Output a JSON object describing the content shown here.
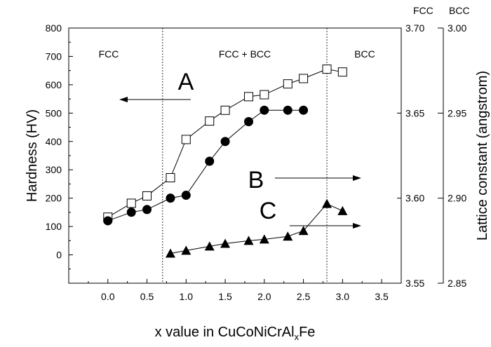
{
  "chart_data": {
    "type": "scatter",
    "xlabel": "x value in CuCoNiCrAl",
    "xlabel_subscript": "x",
    "xlabel_suffix": "Fe",
    "ylabel_left": "Hardness (HV)",
    "ylabel_right": "Lattice constant (angstrom)",
    "xlim": [
      -0.5,
      3.75
    ],
    "x_ticks": [
      "0.0",
      "0.5",
      "1.0",
      "1.5",
      "2.0",
      "2.5",
      "3.0",
      "3.5"
    ],
    "ylim_left": [
      -100,
      800
    ],
    "y_ticks_left": [
      "0",
      "100",
      "200",
      "300",
      "400",
      "500",
      "600",
      "700",
      "800"
    ],
    "right_axis_headers": [
      "FCC",
      "BCC"
    ],
    "y_ticks_right_fcc": [
      "3.55",
      "3.60",
      "3.65",
      "3.70"
    ],
    "y_ticks_right_bcc": [
      "2.85",
      "2.90",
      "2.95",
      "3.00"
    ],
    "ylim_right_fcc": [
      3.55,
      3.7
    ],
    "ylim_right_bcc": [
      2.85,
      3.0
    ],
    "phase_boundaries": [
      0.7,
      2.8
    ],
    "region_labels": [
      "FCC",
      "FCC + BCC",
      "BCC"
    ],
    "series": [
      {
        "name": "A",
        "marker": "open-square",
        "axis": "left",
        "x": [
          0.0,
          0.3,
          0.5,
          0.8,
          1.0,
          1.3,
          1.5,
          1.8,
          2.0,
          2.3,
          2.5,
          2.8,
          3.0
        ],
        "y": [
          133,
          182,
          208,
          272,
          407,
          472,
          510,
          558,
          565,
          603,
          622,
          655,
          645
        ]
      },
      {
        "name": "B",
        "marker": "filled-circle",
        "axis": "right-fcc",
        "x": [
          0.0,
          0.3,
          0.5,
          0.8,
          1.0,
          1.3,
          1.5,
          1.8,
          2.0,
          2.3,
          2.5
        ],
        "y": [
          3.5867,
          3.5917,
          3.5933,
          3.6,
          3.6017,
          3.6217,
          3.6333,
          3.645,
          3.6517,
          3.6517,
          3.6517
        ]
      },
      {
        "name": "C",
        "marker": "filled-triangle",
        "axis": "right-bcc",
        "x": [
          0.8,
          1.0,
          1.3,
          1.5,
          1.8,
          2.0,
          2.3,
          2.5,
          2.8,
          3.0
        ],
        "y": [
          2.8675,
          2.8692,
          2.8717,
          2.8733,
          2.875,
          2.8758,
          2.8775,
          2.8808,
          2.8967,
          2.8925
        ]
      }
    ],
    "annotations": [
      {
        "letter": "A",
        "arrow": "left",
        "points_to": "left axis"
      },
      {
        "letter": "B",
        "arrow": "right",
        "points_to": "right axis"
      },
      {
        "letter": "C",
        "arrow": "right",
        "points_to": "right axis"
      }
    ]
  }
}
